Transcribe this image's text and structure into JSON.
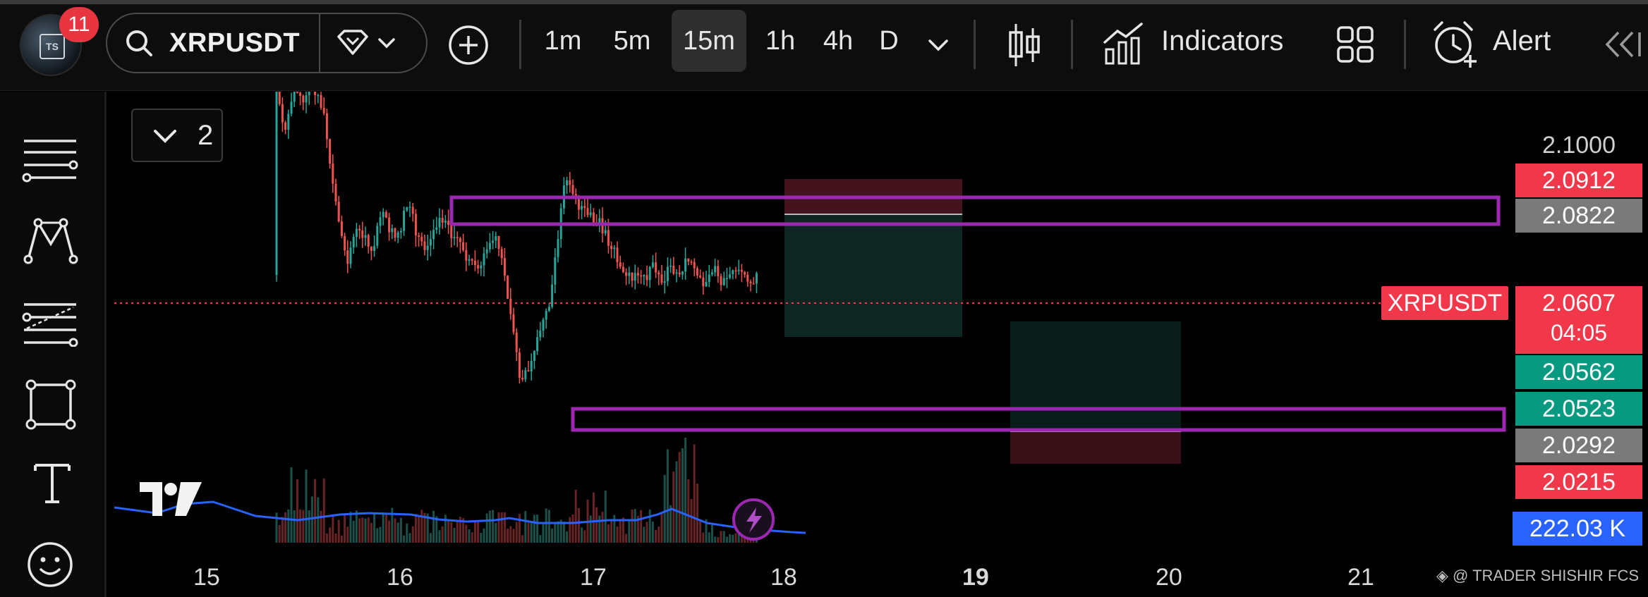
{
  "header": {
    "notification_count": "11",
    "symbol": "XRPUSDT",
    "timeframes": [
      "1m",
      "5m",
      "15m",
      "1h",
      "4h",
      "D"
    ],
    "active_timeframe": "15m",
    "indicators_label": "Indicators",
    "alert_label": "Alert"
  },
  "legend": {
    "collapsed_count": "2"
  },
  "price_scale": {
    "top_tick": "2.1000",
    "labels": [
      {
        "text": "2.0912",
        "color": "#f0384a"
      },
      {
        "text": "2.0822",
        "color": "#7a7a7a"
      },
      {
        "text": "2.0562",
        "color": "#089981"
      },
      {
        "text": "2.0523",
        "color": "#089981"
      },
      {
        "text": "2.0292",
        "color": "#7a7a7a"
      },
      {
        "text": "2.0215",
        "color": "#f0384a"
      }
    ],
    "current_price": "2.0607",
    "countdown": "04:05",
    "symbol_label": "XRPUSDT",
    "volume_label": "222.03 K"
  },
  "x_axis": {
    "ticks": [
      "15",
      "16",
      "17",
      "18",
      "19",
      "20",
      "21"
    ]
  },
  "watermark": "@ TRADER SHISHIR FCS",
  "colors": {
    "up": "#26a69a",
    "down": "#ef5350",
    "zone": "#9c27b0",
    "current": "#f0384a",
    "volume_ma": "#2962ff"
  }
}
